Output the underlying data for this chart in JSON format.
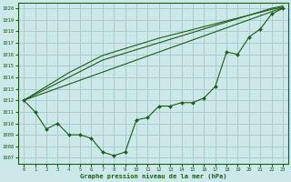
{
  "title": "Graphe pression niveau de la mer (hPa)",
  "bg_color": "#cce8e8",
  "grid_color": "#aacccc",
  "line_color": "#1a5c1a",
  "xlim": [
    -0.5,
    23.5
  ],
  "ylim": [
    1006.5,
    1020.5
  ],
  "yticks": [
    1007,
    1008,
    1009,
    1010,
    1011,
    1012,
    1013,
    1014,
    1015,
    1016,
    1017,
    1018,
    1019,
    1020
  ],
  "xticks": [
    0,
    1,
    2,
    3,
    4,
    5,
    6,
    7,
    8,
    9,
    10,
    11,
    12,
    13,
    14,
    15,
    16,
    17,
    18,
    19,
    20,
    21,
    22,
    23
  ],
  "series_straight": [
    [
      1012,
      1012.35,
      1012.7,
      1013.05,
      1013.4,
      1013.75,
      1014.1,
      1014.45,
      1014.8,
      1015.15,
      1015.5,
      1015.85,
      1016.2,
      1016.55,
      1016.9,
      1017.25,
      1017.6,
      1017.95,
      1018.3,
      1018.65,
      1019.0,
      1019.35,
      1019.7,
      1020.05
    ],
    [
      1012,
      1012.5,
      1013.0,
      1013.5,
      1014.0,
      1014.5,
      1015.0,
      1015.5,
      1015.8,
      1016.1,
      1016.4,
      1016.7,
      1017.0,
      1017.3,
      1017.6,
      1017.9,
      1018.2,
      1018.5,
      1018.8,
      1019.1,
      1019.4,
      1019.7,
      1020.0,
      1020.2
    ],
    [
      1012,
      1012.6,
      1013.2,
      1013.8,
      1014.4,
      1014.9,
      1015.4,
      1015.9,
      1016.2,
      1016.5,
      1016.8,
      1017.1,
      1017.4,
      1017.65,
      1017.9,
      1018.15,
      1018.4,
      1018.65,
      1018.9,
      1019.15,
      1019.4,
      1019.65,
      1019.9,
      1020.1
    ]
  ],
  "series_wavy": [
    1012,
    1011,
    1009.5,
    1010,
    1009,
    1009,
    1008.7,
    1007.5,
    1007.2,
    1007.5,
    1010.3,
    1010.5,
    1011.5,
    1011.5,
    1011.8,
    1011.8,
    1012.2,
    1013.2,
    1016.2,
    1016.0,
    1017.5,
    1018.2,
    1019.5,
    1020.0
  ]
}
